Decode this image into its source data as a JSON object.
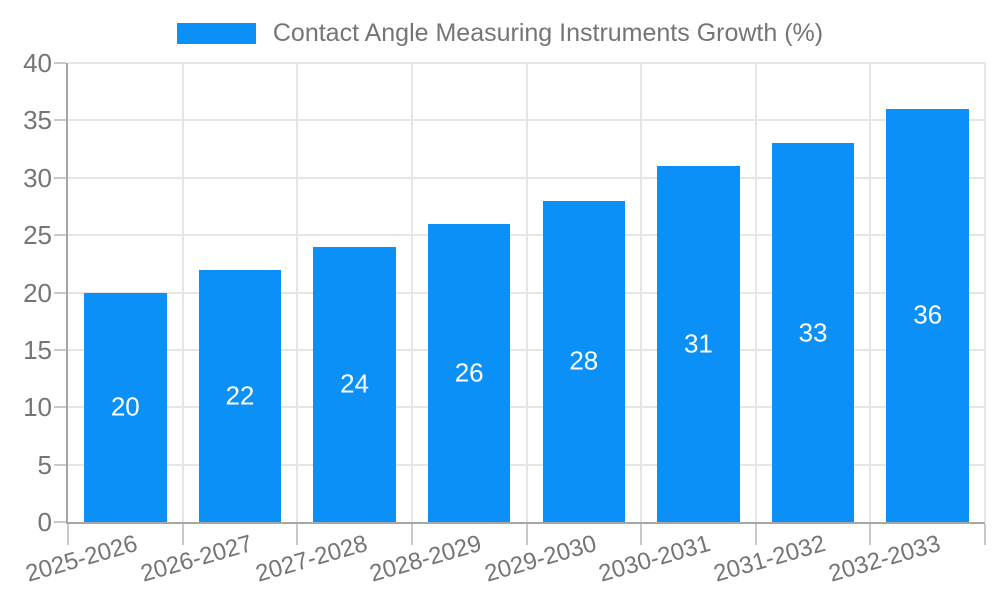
{
  "legend": {
    "label": "Contact Angle Measuring Instruments Growth (%)"
  },
  "chart_data": {
    "type": "bar",
    "title": "Contact Angle Measuring Instruments Growth (%)",
    "categories": [
      "2025-2026",
      "2026-2027",
      "2027-2028",
      "2028-2029",
      "2029-2030",
      "2030-2031",
      "2031-2032",
      "2032-2033"
    ],
    "values": [
      20,
      22,
      24,
      26,
      28,
      31,
      33,
      36
    ],
    "value_labels": [
      "20",
      "22",
      "24",
      "26",
      "28",
      "31",
      "33",
      "36"
    ],
    "xlabel": "",
    "ylabel": "",
    "ylim": [
      0,
      40
    ],
    "yticks": [
      0,
      5,
      10,
      15,
      20,
      25,
      30,
      35,
      40
    ],
    "grid": true,
    "legend_position": "top-center",
    "colors": {
      "bar": "#0b90f7",
      "grid": "#e6e6e6",
      "axis_line": "#a6a6a6",
      "tick_mark": "#c9c9c9",
      "axis_text": "#757575",
      "value_label_text": "#ffffff",
      "background": "#ffffff"
    }
  }
}
